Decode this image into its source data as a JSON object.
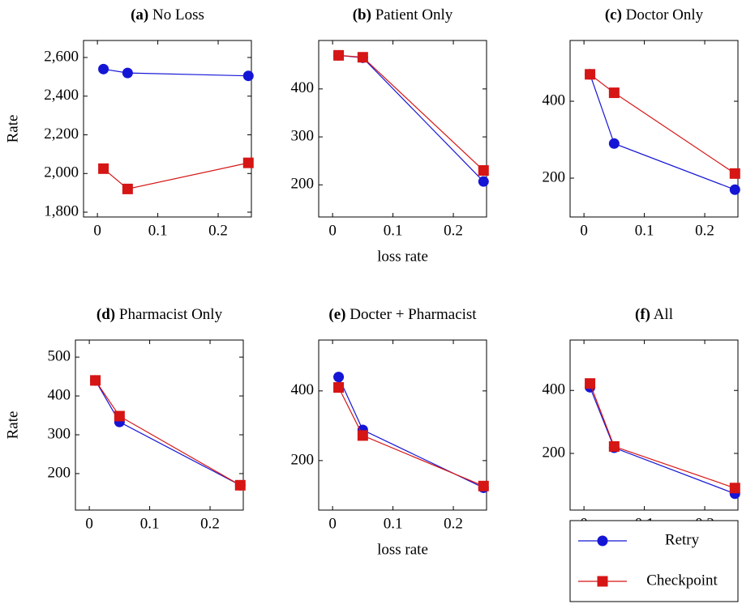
{
  "chart_data": [
    {
      "type": "line",
      "label": "(a)",
      "title": "No Loss",
      "ylabel": "Rate",
      "x": [
        0.01,
        0.05,
        0.25
      ],
      "xlim": [
        -0.023,
        0.255
      ],
      "xticks": [
        0,
        0.1,
        0.2
      ],
      "ylim": [
        1775,
        2688
      ],
      "yticks": [
        {
          "value": 1800,
          "label": "1,800"
        },
        {
          "value": 2000,
          "label": "2,000"
        },
        {
          "value": 2200,
          "label": "2,200"
        },
        {
          "value": 2400,
          "label": "2,400"
        },
        {
          "value": 2600,
          "label": "2,600"
        }
      ],
      "series": [
        {
          "color": "#1515d6",
          "marker": "circle",
          "values": [
            2540,
            2520,
            2505
          ]
        },
        {
          "color": "#d61515",
          "marker": "square",
          "values": [
            2025,
            1920,
            2055
          ]
        }
      ]
    },
    {
      "type": "line",
      "label": "(b)",
      "title": "Patient Only",
      "xlabel": "loss rate",
      "x": [
        0.01,
        0.05,
        0.25
      ],
      "xlim": [
        -0.023,
        0.255
      ],
      "xticks": [
        0,
        0.1,
        0.2
      ],
      "ylim": [
        133,
        501
      ],
      "yticks": [
        200,
        300,
        400
      ],
      "series": [
        {
          "color": "#1515d6",
          "marker": "circle",
          "values": [
            470,
            465,
            207
          ]
        },
        {
          "color": "#d61515",
          "marker": "square",
          "values": [
            470,
            466,
            230
          ]
        }
      ]
    },
    {
      "type": "line",
      "label": "(c)",
      "title": "Doctor Only",
      "x": [
        0.01,
        0.05,
        0.25
      ],
      "xlim": [
        -0.023,
        0.255
      ],
      "xticks": [
        0,
        0.1,
        0.2
      ],
      "ylim": [
        99,
        558
      ],
      "yticks": [
        200,
        400
      ],
      "series": [
        {
          "color": "#1515d6",
          "marker": "circle",
          "values": [
            470,
            290,
            170
          ]
        },
        {
          "color": "#d61515",
          "marker": "square",
          "values": [
            470,
            422,
            212
          ]
        }
      ]
    },
    {
      "type": "line",
      "label": "(d)",
      "title": "Pharmacist Only",
      "ylabel": "Rate",
      "x": [
        0.01,
        0.05,
        0.25
      ],
      "xlim": [
        -0.023,
        0.255
      ],
      "xticks": [
        0,
        0.1,
        0.2
      ],
      "ylim": [
        106,
        544
      ],
      "yticks": [
        200,
        300,
        400,
        500
      ],
      "series": [
        {
          "color": "#1515d6",
          "marker": "circle",
          "values": [
            440,
            333,
            170
          ]
        },
        {
          "color": "#d61515",
          "marker": "square",
          "values": [
            440,
            348,
            170
          ]
        }
      ]
    },
    {
      "type": "line",
      "label": "(e)",
      "title": "Docter + Pharmacist",
      "xlabel": "loss rate",
      "x": [
        0.01,
        0.05,
        0.25
      ],
      "xlim": [
        -0.023,
        0.255
      ],
      "xticks": [
        0,
        0.1,
        0.2
      ],
      "ylim": [
        58,
        546
      ],
      "yticks": [
        200,
        400
      ],
      "series": [
        {
          "color": "#1515d6",
          "marker": "circle",
          "values": [
            440,
            288,
            122
          ]
        },
        {
          "color": "#d61515",
          "marker": "square",
          "values": [
            410,
            272,
            127
          ]
        }
      ]
    },
    {
      "type": "line",
      "label": "(f)",
      "title": "All",
      "x": [
        0.01,
        0.05,
        0.25
      ],
      "xlim": [
        -0.023,
        0.255
      ],
      "xticks": [
        0,
        0.1,
        0.2
      ],
      "ylim": [
        20,
        560
      ],
      "yticks": [
        200,
        400
      ],
      "series": [
        {
          "name": "Retry",
          "color": "#1515d6",
          "marker": "circle",
          "values": [
            410,
            218,
            72
          ]
        },
        {
          "name": "Checkpoint",
          "color": "#d61515",
          "marker": "square",
          "values": [
            422,
            222,
            90
          ]
        }
      ]
    }
  ]
}
